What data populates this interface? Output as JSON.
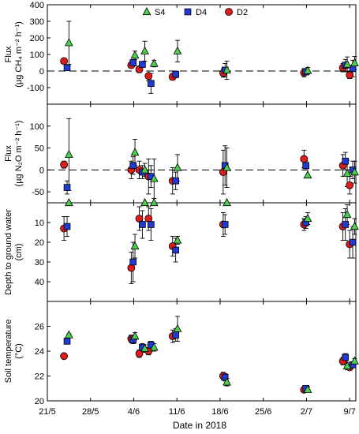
{
  "figure": {
    "xlabel": "Date in 2018",
    "legend": [
      {
        "name": "S4",
        "marker": "triangle",
        "color": "#4ccf4c"
      },
      {
        "name": "D4",
        "marker": "square",
        "color": "#1f3bd1"
      },
      {
        "name": "D2",
        "marker": "circle",
        "color": "#e01b1b"
      }
    ],
    "x_ticks": [
      {
        "label": "21/5",
        "day": 0
      },
      {
        "label": "28/5",
        "day": 7
      },
      {
        "label": "4/6",
        "day": 14
      },
      {
        "label": "11/6",
        "day": 21
      },
      {
        "label": "18/6",
        "day": 28
      },
      {
        "label": "25/6",
        "day": 35
      },
      {
        "label": "2/7",
        "day": 42
      },
      {
        "label": "9/7",
        "day": 49
      }
    ],
    "x_range": [
      0,
      50
    ]
  },
  "chart_data": [
    {
      "type": "scatter",
      "ylabel_lines": [
        "Flux",
        "(µg CH₄ m⁻² h⁻¹)"
      ],
      "ylim": [
        -200,
        400
      ],
      "yticks": [
        -100,
        0,
        100,
        200,
        300,
        400
      ],
      "zero_line": true,
      "series": [
        {
          "name": "S4",
          "points": [
            {
              "x": 3.5,
              "y": 170,
              "err": 130
            },
            {
              "x": 14.2,
              "y": 95,
              "err": 25
            },
            {
              "x": 15.8,
              "y": 120,
              "err": 60
            },
            {
              "x": 17.3,
              "y": 45,
              "err": 20
            },
            {
              "x": 21.1,
              "y": 120,
              "err": 65
            },
            {
              "x": 29.1,
              "y": 5,
              "err": 55
            },
            {
              "x": 42.2,
              "y": 2,
              "err": 20
            },
            {
              "x": 48.6,
              "y": 40,
              "err": 45
            },
            {
              "x": 49.8,
              "y": 48,
              "err": 40
            }
          ]
        },
        {
          "name": "D4",
          "points": [
            {
              "x": 3.2,
              "y": 20,
              "err": 0
            },
            {
              "x": 13.9,
              "y": 50,
              "err": 20
            },
            {
              "x": 15.4,
              "y": 40,
              "err": 15
            },
            {
              "x": 16.8,
              "y": -75,
              "err": 60
            },
            {
              "x": 20.8,
              "y": -20,
              "err": 20
            },
            {
              "x": 28.8,
              "y": 5,
              "err": 40
            },
            {
              "x": 41.9,
              "y": -5,
              "err": 15
            },
            {
              "x": 48.3,
              "y": 35,
              "err": 35
            },
            {
              "x": 49.5,
              "y": 15,
              "err": 50
            }
          ]
        },
        {
          "name": "D2",
          "points": [
            {
              "x": 2.7,
              "y": 60,
              "err": 0
            },
            {
              "x": 13.6,
              "y": 35,
              "err": 15
            },
            {
              "x": 14.9,
              "y": 10,
              "err": 20
            },
            {
              "x": 16.4,
              "y": -30,
              "err": 30
            },
            {
              "x": 20.3,
              "y": -35,
              "err": 20
            },
            {
              "x": 28.5,
              "y": -12,
              "err": 25
            },
            {
              "x": 41.6,
              "y": -10,
              "err": 25
            },
            {
              "x": 47.9,
              "y": 20,
              "err": 25
            },
            {
              "x": 49.0,
              "y": -25,
              "err": 20
            }
          ]
        }
      ]
    },
    {
      "type": "scatter",
      "ylabel_lines": [
        "Flux",
        "(µg N₂O m⁻² h⁻¹)"
      ],
      "ylim": [
        -75,
        150
      ],
      "yticks": [
        -50,
        0,
        50,
        100
      ],
      "zero_line": true,
      "series": [
        {
          "name": "S4",
          "points": [
            {
              "x": 3.5,
              "y": 35,
              "err": 82
            },
            {
              "x": 14.2,
              "y": 40,
              "err": 30
            },
            {
              "x": 15.8,
              "y": 0,
              "err": 15
            },
            {
              "x": 17.3,
              "y": -20,
              "err": 45
            },
            {
              "x": 21.1,
              "y": 5,
              "err": 30
            },
            {
              "x": 29.1,
              "y": 5,
              "err": 45
            },
            {
              "x": 42.2,
              "y": -12,
              "err": 0
            },
            {
              "x": 48.6,
              "y": -8,
              "err": 30
            },
            {
              "x": 49.8,
              "y": -5,
              "err": 25
            }
          ]
        },
        {
          "name": "D4",
          "points": [
            {
              "x": 3.2,
              "y": -40,
              "err": 15
            },
            {
              "x": 13.9,
              "y": 10,
              "err": 20
            },
            {
              "x": 15.4,
              "y": -5,
              "err": 15
            },
            {
              "x": 16.8,
              "y": -15,
              "err": 25
            },
            {
              "x": 20.8,
              "y": -25,
              "err": 20
            },
            {
              "x": 28.8,
              "y": 10,
              "err": 45
            },
            {
              "x": 41.9,
              "y": 10,
              "err": 10
            },
            {
              "x": 48.3,
              "y": 20,
              "err": 20
            },
            {
              "x": 49.5,
              "y": 0,
              "err": 20
            }
          ]
        },
        {
          "name": "D2",
          "points": [
            {
              "x": 2.7,
              "y": 12,
              "err": 8
            },
            {
              "x": 13.6,
              "y": 0,
              "err": 20
            },
            {
              "x": 14.9,
              "y": 0,
              "err": 20
            },
            {
              "x": 16.4,
              "y": -15,
              "err": 40
            },
            {
              "x": 20.3,
              "y": -25,
              "err": 30
            },
            {
              "x": 28.5,
              "y": -5,
              "err": 50
            },
            {
              "x": 41.6,
              "y": 25,
              "err": 20
            },
            {
              "x": 47.9,
              "y": 10,
              "err": 25
            },
            {
              "x": 49.0,
              "y": -35,
              "err": 20
            }
          ]
        }
      ]
    },
    {
      "type": "scatter",
      "ylabel_lines": [
        "Depth to ground water",
        "(cm)"
      ],
      "ylim": [
        0,
        50
      ],
      "y_inverted": true,
      "yticks": [
        10,
        20,
        30,
        40
      ],
      "zero_line": false,
      "series": [
        {
          "name": "S4",
          "points": [
            {
              "x": 3.5,
              "y": 0,
              "err": 0
            },
            {
              "x": 14.2,
              "y": 22,
              "err": 6
            },
            {
              "x": 15.8,
              "y": 0,
              "err": 0
            },
            {
              "x": 17.3,
              "y": 0,
              "err": 0
            },
            {
              "x": 21.1,
              "y": 19,
              "err": 2
            },
            {
              "x": 29.1,
              "y": 0,
              "err": 0
            },
            {
              "x": 42.2,
              "y": 8,
              "err": 3
            },
            {
              "x": 48.6,
              "y": 6,
              "err": 5
            },
            {
              "x": 49.8,
              "y": 12,
              "err": 4
            }
          ]
        },
        {
          "name": "D4",
          "points": [
            {
              "x": 3.2,
              "y": 12,
              "err": 5
            },
            {
              "x": 13.9,
              "y": 30,
              "err": 10
            },
            {
              "x": 15.4,
              "y": 11,
              "err": 7
            },
            {
              "x": 16.8,
              "y": 11,
              "err": 8
            },
            {
              "x": 20.8,
              "y": 24,
              "err": 6
            },
            {
              "x": 28.8,
              "y": 11,
              "err": 5
            },
            {
              "x": 41.9,
              "y": 10,
              "err": 3
            },
            {
              "x": 48.3,
              "y": 11,
              "err": 8
            },
            {
              "x": 49.5,
              "y": 20,
              "err": 8
            }
          ]
        },
        {
          "name": "D2",
          "points": [
            {
              "x": 2.7,
              "y": 13,
              "err": 6
            },
            {
              "x": 13.6,
              "y": 33,
              "err": 8
            },
            {
              "x": 14.9,
              "y": 8,
              "err": 6
            },
            {
              "x": 16.4,
              "y": 8,
              "err": 6
            },
            {
              "x": 20.3,
              "y": 22,
              "err": 5
            },
            {
              "x": 28.5,
              "y": 11,
              "err": 6
            },
            {
              "x": 41.6,
              "y": 11,
              "err": 3
            },
            {
              "x": 47.9,
              "y": 12,
              "err": 7
            },
            {
              "x": 49.0,
              "y": 21,
              "err": 7
            }
          ]
        }
      ]
    },
    {
      "type": "scatter",
      "ylabel_lines": [
        "Soil temperature",
        "(°C)"
      ],
      "ylim": [
        20,
        28
      ],
      "yticks": [
        20,
        22,
        24,
        26
      ],
      "zero_line": false,
      "series": [
        {
          "name": "S4",
          "points": [
            {
              "x": 3.5,
              "y": 25.3,
              "err": 0.1
            },
            {
              "x": 14.2,
              "y": 25.2,
              "err": 0.3
            },
            {
              "x": 15.8,
              "y": 24.2,
              "err": 0.3
            },
            {
              "x": 17.3,
              "y": 24.3,
              "err": 0.3
            },
            {
              "x": 21.1,
              "y": 25.8,
              "err": 1.0
            },
            {
              "x": 29.1,
              "y": 21.5,
              "err": 0.3
            },
            {
              "x": 42.2,
              "y": 20.9,
              "err": 0.2
            },
            {
              "x": 48.6,
              "y": 22.8,
              "err": 0.3
            },
            {
              "x": 49.8,
              "y": 23.2,
              "err": 0.2
            }
          ]
        },
        {
          "name": "D4",
          "points": [
            {
              "x": 3.2,
              "y": 24.8,
              "err": 0.1
            },
            {
              "x": 13.9,
              "y": 24.9,
              "err": 0.3
            },
            {
              "x": 15.4,
              "y": 24.3,
              "err": 0.3
            },
            {
              "x": 16.8,
              "y": 24.5,
              "err": 0.3
            },
            {
              "x": 20.8,
              "y": 25.3,
              "err": 0.5
            },
            {
              "x": 28.8,
              "y": 21.9,
              "err": 0.3
            },
            {
              "x": 41.9,
              "y": 21.0,
              "err": 0.2
            },
            {
              "x": 48.3,
              "y": 23.5,
              "err": 0.3
            },
            {
              "x": 49.5,
              "y": 22.9,
              "err": 0.2
            }
          ]
        },
        {
          "name": "D2",
          "points": [
            {
              "x": 2.7,
              "y": 23.6,
              "err": 0
            },
            {
              "x": 13.6,
              "y": 25.0,
              "err": 0.3
            },
            {
              "x": 14.9,
              "y": 23.8,
              "err": 0.3
            },
            {
              "x": 16.4,
              "y": 24.0,
              "err": 0.3
            },
            {
              "x": 20.3,
              "y": 25.2,
              "err": 0.5
            },
            {
              "x": 28.5,
              "y": 22.0,
              "err": 0.3
            },
            {
              "x": 41.6,
              "y": 20.9,
              "err": 0.2
            },
            {
              "x": 47.9,
              "y": 23.2,
              "err": 0.3
            },
            {
              "x": 49.0,
              "y": 22.7,
              "err": 0.2
            }
          ]
        }
      ]
    }
  ]
}
